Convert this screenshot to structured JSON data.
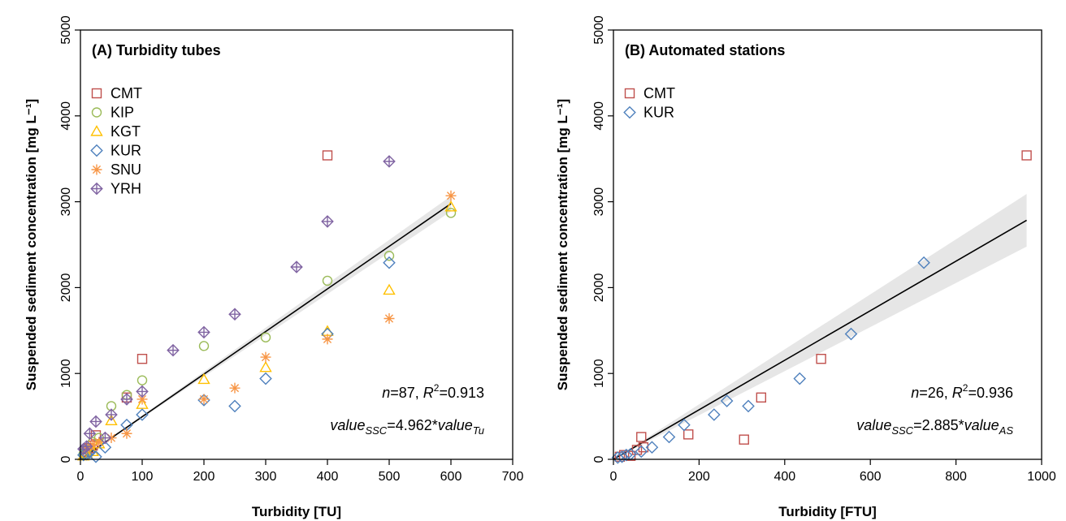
{
  "chart_data": [
    {
      "type": "scatter",
      "title": "(A) Turbidity tubes",
      "xlabel": "Turbidity [TU]",
      "ylabel": "Suspended sediment concentration [mg L⁻¹]",
      "xlim": [
        0,
        700
      ],
      "ylim": [
        0,
        5000
      ],
      "xticks": [
        "0",
        "100",
        "200",
        "300",
        "400",
        "500",
        "600",
        "700"
      ],
      "yticks": [
        "0",
        "1000",
        "2000",
        "3000",
        "4000",
        "5000"
      ],
      "grid": false,
      "legend_position": "top-left",
      "stats": {
        "n_label": "n",
        "n": "87",
        "r2_label": "R",
        "r2_sup": "2",
        "r2": "0.913"
      },
      "equation": {
        "lhs": "value",
        "lhs_sub": "SSC",
        "mid": "=4.962*",
        "rhs": "value",
        "rhs_sub": "Tu"
      },
      "fit": {
        "slope": 4.962,
        "x_range": [
          0,
          600
        ],
        "band_halfwidth_frac": [
          0.0,
          0.03
        ]
      },
      "series": [
        {
          "name": "CMT",
          "marker": "square",
          "color": "#C0504D",
          "points": [
            [
              10,
              90
            ],
            [
              15,
              130
            ],
            [
              20,
              160
            ],
            [
              25,
              280
            ],
            [
              75,
              720
            ],
            [
              100,
              1170
            ],
            [
              400,
              3540
            ]
          ]
        },
        {
          "name": "KIP",
          "marker": "circle",
          "color": "#9BBB59",
          "points": [
            [
              5,
              60
            ],
            [
              10,
              110
            ],
            [
              20,
              200
            ],
            [
              30,
              250
            ],
            [
              50,
              620
            ],
            [
              75,
              750
            ],
            [
              100,
              920
            ],
            [
              200,
              1320
            ],
            [
              300,
              1420
            ],
            [
              400,
              2080
            ],
            [
              500,
              2370
            ],
            [
              600,
              2870
            ]
          ]
        },
        {
          "name": "KGT",
          "marker": "triangle",
          "color": "#FFC000",
          "points": [
            [
              5,
              40
            ],
            [
              10,
              70
            ],
            [
              20,
              90
            ],
            [
              30,
              180
            ],
            [
              50,
              450
            ],
            [
              100,
              640
            ],
            [
              200,
              930
            ],
            [
              300,
              1070
            ],
            [
              400,
              1490
            ],
            [
              500,
              1970
            ],
            [
              600,
              2940
            ]
          ]
        },
        {
          "name": "KUR",
          "marker": "diamond",
          "color": "#4F81BD",
          "points": [
            [
              5,
              50
            ],
            [
              10,
              60
            ],
            [
              15,
              80
            ],
            [
              25,
              30
            ],
            [
              40,
              140
            ],
            [
              75,
              400
            ],
            [
              100,
              520
            ],
            [
              200,
              690
            ],
            [
              250,
              620
            ],
            [
              300,
              940
            ],
            [
              400,
              1460
            ],
            [
              500,
              2290
            ]
          ]
        },
        {
          "name": "SNU",
          "marker": "asterisk",
          "color": "#F79646",
          "points": [
            [
              10,
              120
            ],
            [
              20,
              170
            ],
            [
              30,
              200
            ],
            [
              50,
              250
            ],
            [
              75,
              300
            ],
            [
              100,
              700
            ],
            [
              200,
              700
            ],
            [
              250,
              830
            ],
            [
              300,
              1190
            ],
            [
              400,
              1400
            ],
            [
              500,
              1640
            ],
            [
              600,
              3070
            ]
          ]
        },
        {
          "name": "YRH",
          "marker": "crossdiamond",
          "color": "#8064A2",
          "points": [
            [
              5,
              120
            ],
            [
              10,
              150
            ],
            [
              15,
              300
            ],
            [
              25,
              440
            ],
            [
              40,
              250
            ],
            [
              50,
              520
            ],
            [
              75,
              700
            ],
            [
              100,
              790
            ],
            [
              150,
              1270
            ],
            [
              200,
              1480
            ],
            [
              250,
              1690
            ],
            [
              350,
              2240
            ],
            [
              400,
              2770
            ],
            [
              500,
              3470
            ]
          ]
        }
      ]
    },
    {
      "type": "scatter",
      "title": "(B) Automated stations",
      "xlabel": "Turbidity [FTU]",
      "ylabel": "Suspended sediment concentration [mg L⁻¹]",
      "xlim": [
        0,
        1000
      ],
      "ylim": [
        0,
        5000
      ],
      "xticks": [
        "0",
        "200",
        "400",
        "600",
        "800",
        "1000"
      ],
      "yticks": [
        "0",
        "1000",
        "2000",
        "3000",
        "4000",
        "5000"
      ],
      "grid": false,
      "legend_position": "top-left",
      "stats": {
        "n_label": "n",
        "n": "26",
        "r2_label": "R",
        "r2_sup": "2",
        "r2": "0.936"
      },
      "equation": {
        "lhs": "value",
        "lhs_sub": "SSC",
        "mid": "=2.885*",
        "rhs": "value",
        "rhs_sub": "AS"
      },
      "fit": {
        "slope": 2.885,
        "x_range": [
          0,
          965
        ],
        "band_halfwidth_frac": [
          0.0,
          0.11
        ]
      },
      "series": [
        {
          "name": "CMT",
          "marker": "square",
          "color": "#C0504D",
          "points": [
            [
              15,
              30
            ],
            [
              25,
              50
            ],
            [
              40,
              40
            ],
            [
              55,
              110
            ],
            [
              65,
              260
            ],
            [
              70,
              140
            ],
            [
              175,
              290
            ],
            [
              305,
              230
            ],
            [
              345,
              720
            ],
            [
              485,
              1170
            ],
            [
              965,
              3540
            ]
          ]
        },
        {
          "name": "KUR",
          "marker": "diamond",
          "color": "#4F81BD",
          "points": [
            [
              10,
              20
            ],
            [
              20,
              30
            ],
            [
              30,
              50
            ],
            [
              40,
              60
            ],
            [
              65,
              90
            ],
            [
              90,
              140
            ],
            [
              130,
              260
            ],
            [
              165,
              400
            ],
            [
              235,
              520
            ],
            [
              265,
              680
            ],
            [
              315,
              620
            ],
            [
              435,
              940
            ],
            [
              555,
              1460
            ],
            [
              725,
              2290
            ]
          ]
        }
      ]
    }
  ]
}
